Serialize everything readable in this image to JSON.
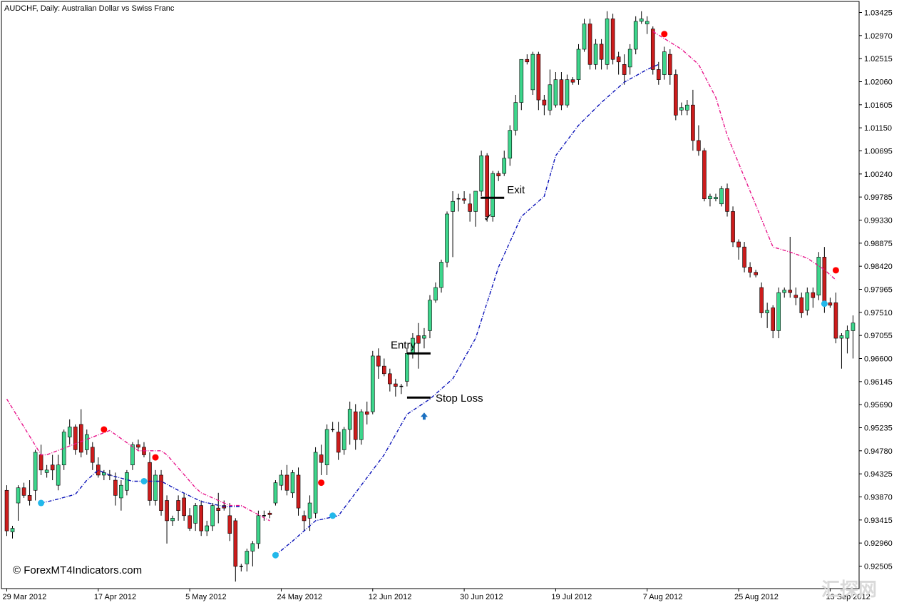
{
  "window": {
    "title": "AUDCHF, Daily:  Australian Dollar vs Swiss Franc",
    "copyright": "© ForexMT4Indicators.com",
    "watermark": "汇探网"
  },
  "chart_data": {
    "type": "candlestick",
    "symbol": "AUDCHF",
    "timeframe": "Daily",
    "y_axis": {
      "ticks": [
        "1.03425",
        "1.02970",
        "1.02515",
        "1.02060",
        "1.01605",
        "1.01150",
        "1.00695",
        "1.00240",
        "0.99785",
        "0.99330",
        "0.98875",
        "0.98420",
        "0.97965",
        "0.97510",
        "0.97055",
        "0.96600",
        "0.96145",
        "0.95690",
        "0.95235",
        "0.94780",
        "0.94325",
        "0.93870",
        "0.93415",
        "0.92960",
        "0.92505"
      ],
      "range": [
        0.923,
        1.0355
      ]
    },
    "x_axis": {
      "ticks": [
        {
          "label": "29 Mar 2012",
          "bar": 0
        },
        {
          "label": "17 Apr 2012",
          "bar": 16
        },
        {
          "label": "5 May 2012",
          "bar": 32
        },
        {
          "label": "24 May 2012",
          "bar": 48
        },
        {
          "label": "12 Jun 2012",
          "bar": 64
        },
        {
          "label": "30 Jun 2012",
          "bar": 80
        },
        {
          "label": "19 Jul 2012",
          "bar": 96
        },
        {
          "label": "7 Aug 2012",
          "bar": 112
        },
        {
          "label": "25 Aug 2012",
          "bar": 128
        },
        {
          "label": "13 Sep 2012",
          "bar": 144
        }
      ]
    },
    "candles": [
      [
        0.94,
        0.941,
        0.931,
        0.932
      ],
      [
        0.9318,
        0.933,
        0.9305,
        0.9325
      ],
      [
        0.9375,
        0.941,
        0.934,
        0.9405
      ],
      [
        0.9405,
        0.9415,
        0.9385,
        0.939
      ],
      [
        0.939,
        0.942,
        0.937,
        0.938
      ],
      [
        0.94,
        0.948,
        0.938,
        0.9475
      ],
      [
        0.947,
        0.949,
        0.943,
        0.944
      ],
      [
        0.9435,
        0.945,
        0.9425,
        0.944
      ],
      [
        0.945,
        0.947,
        0.942,
        0.944
      ],
      [
        0.941,
        0.947,
        0.94,
        0.945
      ],
      [
        0.945,
        0.952,
        0.944,
        0.9515
      ],
      [
        0.9505,
        0.954,
        0.949,
        0.9525
      ],
      [
        0.9525,
        0.953,
        0.947,
        0.948
      ],
      [
        0.953,
        0.956,
        0.9465,
        0.9475
      ],
      [
        0.948,
        0.952,
        0.947,
        0.951
      ],
      [
        0.9485,
        0.9495,
        0.944,
        0.9455
      ],
      [
        0.945,
        0.9465,
        0.9425,
        0.943
      ],
      [
        0.943,
        0.944,
        0.942,
        0.9435
      ],
      [
        0.943,
        0.944,
        0.942,
        0.9428
      ],
      [
        0.942,
        0.9435,
        0.937,
        0.939
      ],
      [
        0.9385,
        0.942,
        0.936,
        0.941
      ],
      [
        0.94,
        0.944,
        0.939,
        0.9435
      ],
      [
        0.945,
        0.9495,
        0.944,
        0.949
      ],
      [
        0.949,
        0.95,
        0.948,
        0.9485
      ],
      [
        0.9485,
        0.9495,
        0.9465,
        0.947
      ],
      [
        0.9455,
        0.9475,
        0.937,
        0.938
      ],
      [
        0.938,
        0.944,
        0.937,
        0.943
      ],
      [
        0.943,
        0.944,
        0.935,
        0.936
      ],
      [
        0.938,
        0.939,
        0.9295,
        0.934
      ],
      [
        0.934,
        0.935,
        0.933,
        0.9345
      ],
      [
        0.938,
        0.939,
        0.934,
        0.936
      ],
      [
        0.9385,
        0.9395,
        0.934,
        0.935
      ],
      [
        0.935,
        0.9365,
        0.932,
        0.9325
      ],
      [
        0.9335,
        0.9375,
        0.932,
        0.937
      ],
      [
        0.937,
        0.938,
        0.931,
        0.932
      ],
      [
        0.932,
        0.934,
        0.931,
        0.933
      ],
      [
        0.933,
        0.9375,
        0.932,
        0.937
      ],
      [
        0.9365,
        0.9395,
        0.9335,
        0.936
      ],
      [
        0.937,
        0.938,
        0.936,
        0.9365
      ],
      [
        0.935,
        0.9375,
        0.93,
        0.9315
      ],
      [
        0.934,
        0.9345,
        0.922,
        0.925
      ],
      [
        0.9248,
        0.9255,
        0.924,
        0.925
      ],
      [
        0.9255,
        0.9285,
        0.924,
        0.928
      ],
      [
        0.928,
        0.93,
        0.925,
        0.9295
      ],
      [
        0.9295,
        0.936,
        0.9285,
        0.935
      ],
      [
        0.935,
        0.936,
        0.934,
        0.9348
      ],
      [
        0.9355,
        0.936,
        0.9345,
        0.9352
      ],
      [
        0.9375,
        0.942,
        0.937,
        0.9415
      ],
      [
        0.941,
        0.944,
        0.94,
        0.943
      ],
      [
        0.943,
        0.945,
        0.939,
        0.94
      ],
      [
        0.9395,
        0.944,
        0.9385,
        0.9435
      ],
      [
        0.943,
        0.9445,
        0.935,
        0.9365
      ],
      [
        0.935,
        0.936,
        0.932,
        0.934
      ],
      [
        0.9345,
        0.939,
        0.932,
        0.9375
      ],
      [
        0.9355,
        0.9485,
        0.9345,
        0.9475
      ],
      [
        0.947,
        0.949,
        0.943,
        0.9455
      ],
      [
        0.945,
        0.953,
        0.943,
        0.952
      ],
      [
        0.952,
        0.9535,
        0.9515,
        0.952
      ],
      [
        0.9515,
        0.9535,
        0.946,
        0.9475
      ],
      [
        0.948,
        0.9525,
        0.947,
        0.952
      ],
      [
        0.952,
        0.9575,
        0.949,
        0.956
      ],
      [
        0.9555,
        0.957,
        0.948,
        0.95
      ],
      [
        0.95,
        0.956,
        0.949,
        0.9555
      ],
      [
        0.9555,
        0.9575,
        0.953,
        0.955
      ],
      [
        0.9555,
        0.9675,
        0.955,
        0.9665
      ],
      [
        0.9665,
        0.968,
        0.962,
        0.9645
      ],
      [
        0.9645,
        0.966,
        0.9625,
        0.963
      ],
      [
        0.963,
        0.964,
        0.9595,
        0.961
      ],
      [
        0.961,
        0.962,
        0.9585,
        0.9605
      ],
      [
        0.9603,
        0.961,
        0.959,
        0.9605
      ],
      [
        0.9615,
        0.968,
        0.9605,
        0.967
      ],
      [
        0.967,
        0.971,
        0.966,
        0.97
      ],
      [
        0.9705,
        0.973,
        0.964,
        0.969
      ],
      [
        0.97,
        0.972,
        0.968,
        0.9705
      ],
      [
        0.9715,
        0.9785,
        0.97,
        0.9775
      ],
      [
        0.9775,
        0.981,
        0.977,
        0.98
      ],
      [
        0.98,
        0.9855,
        0.979,
        0.985
      ],
      [
        0.985,
        0.995,
        0.984,
        0.9945
      ],
      [
        0.995,
        0.999,
        0.986,
        0.997
      ],
      [
        0.9975,
        0.9985,
        0.995,
        0.9975
      ],
      [
        0.9975,
        0.999,
        0.9965,
        0.9972
      ],
      [
        0.9965,
        0.9985,
        0.993,
        0.995
      ],
      [
        0.995,
        0.999,
        0.992,
        0.999
      ],
      [
        0.999,
        1.007,
        0.998,
        1.006
      ],
      [
        1.006,
        1.0065,
        0.993,
        0.994
      ],
      [
        0.994,
        1.003,
        0.993,
        1.0025
      ],
      [
        1.0025,
        1.003,
        1.001,
        1.002
      ],
      [
        1.0025,
        1.007,
        1.002,
        1.0055
      ],
      [
        1.0055,
        1.012,
        1.004,
        1.011
      ],
      [
        1.011,
        1.018,
        1.01,
        1.0165
      ],
      [
        1.0165,
        1.025,
        1.015,
        1.025
      ],
      [
        1.025,
        1.026,
        1.024,
        1.0245
      ],
      [
        1.019,
        1.0265,
        1.018,
        1.026
      ],
      [
        1.026,
        1.0265,
        1.015,
        1.017
      ],
      [
        1.017,
        1.018,
        1.014,
        1.016
      ],
      [
        1.015,
        1.023,
        1.014,
        1.02
      ],
      [
        1.016,
        1.0225,
        1.0155,
        1.021
      ],
      [
        1.021,
        1.0225,
        1.015,
        1.016
      ],
      [
        1.016,
        1.022,
        1.0155,
        1.021
      ],
      [
        1.021,
        1.0215,
        1.02,
        1.0205
      ],
      [
        1.021,
        1.028,
        1.02,
        1.027
      ],
      [
        1.027,
        1.033,
        1.0265,
        1.032
      ],
      [
        1.032,
        1.033,
        1.023,
        1.024
      ],
      [
        1.024,
        1.029,
        1.023,
        1.028
      ],
      [
        1.028,
        1.029,
        1.023,
        1.025
      ],
      [
        1.024,
        1.0345,
        1.023,
        1.033
      ],
      [
        1.033,
        1.034,
        1.024,
        1.025
      ],
      [
        1.0255,
        1.0265,
        1.022,
        1.0245
      ],
      [
        1.024,
        1.026,
        1.02,
        1.022
      ],
      [
        1.0235,
        1.028,
        1.022,
        1.027
      ],
      [
        1.027,
        1.0335,
        1.026,
        1.0325
      ],
      [
        1.0325,
        1.0345,
        1.032,
        1.033
      ],
      [
        1.032,
        1.0335,
        1.03,
        1.0325
      ],
      [
        1.031,
        1.0315,
        1.022,
        1.023
      ],
      [
        1.023,
        1.0245,
        1.02,
        1.021
      ],
      [
        1.022,
        1.0275,
        1.021,
        1.0265
      ],
      [
        1.026,
        1.027,
        1.02,
        1.022
      ],
      [
        1.022,
        1.023,
        1.013,
        1.014
      ],
      [
        1.015,
        1.0165,
        1.014,
        1.0155
      ],
      [
        1.015,
        1.017,
        1.014,
        1.016
      ],
      [
        1.016,
        1.019,
        1.007,
        1.009
      ],
      [
        1.009,
        1.012,
        1.006,
        1.007
      ],
      [
        1.007,
        1.0075,
        0.997,
        0.9975
      ],
      [
        0.9975,
        0.9985,
        0.996,
        0.998
      ],
      [
        0.9975,
        0.9985,
        0.997,
        0.9978
      ],
      [
        0.9965,
        1.0,
        0.996,
        0.9995
      ],
      [
        0.9995,
        1.0005,
        0.994,
        0.995
      ],
      [
        0.995,
        0.996,
        0.988,
        0.989
      ],
      [
        0.989,
        0.9895,
        0.9855,
        0.988
      ],
      [
        0.988,
        0.989,
        0.983,
        0.984
      ],
      [
        0.984,
        0.985,
        0.982,
        0.983
      ],
      [
        0.983,
        0.9835,
        0.982,
        0.9825
      ],
      [
        0.98,
        0.981,
        0.974,
        0.975
      ],
      [
        0.975,
        0.977,
        0.972,
        0.9755
      ],
      [
        0.976,
        0.9765,
        0.97,
        0.9715
      ],
      [
        0.9715,
        0.98,
        0.97,
        0.979
      ],
      [
        0.979,
        0.98,
        0.978,
        0.9795
      ],
      [
        0.9795,
        0.99,
        0.978,
        0.979
      ],
      [
        0.9785,
        0.98,
        0.9765,
        0.978
      ],
      [
        0.978,
        0.979,
        0.974,
        0.975
      ],
      [
        0.9755,
        0.98,
        0.9745,
        0.979
      ],
      [
        0.979,
        0.98,
        0.976,
        0.978
      ],
      [
        0.9785,
        0.987,
        0.9775,
        0.986
      ],
      [
        0.986,
        0.988,
        0.975,
        0.977
      ],
      [
        0.977,
        0.978,
        0.976,
        0.9765
      ],
      [
        0.977,
        0.979,
        0.969,
        0.97
      ],
      [
        0.97,
        0.971,
        0.964,
        0.9705
      ],
      [
        0.97,
        0.9725,
        0.967,
        0.9715
      ],
      [
        0.9715,
        0.9745,
        0.966,
        0.973
      ]
    ],
    "indicator_upper": [
      [
        0,
        0.958
      ],
      [
        6,
        0.947
      ],
      [
        7,
        0.947
      ],
      [
        18,
        0.9518
      ],
      [
        23,
        0.9478
      ],
      [
        27,
        0.9478
      ],
      [
        28,
        0.947
      ],
      [
        33,
        0.9405
      ],
      [
        34,
        0.9395
      ],
      [
        39,
        0.937
      ],
      [
        41,
        0.937
      ],
      [
        46,
        0.934
      ],
      [
        113,
        1.0305
      ],
      [
        118,
        1.027
      ],
      [
        121,
        1.024
      ],
      [
        124,
        1.0175
      ],
      [
        126,
        1.01
      ],
      [
        130,
        0.999
      ],
      [
        134,
        0.988
      ],
      [
        137,
        0.987
      ],
      [
        140,
        0.9858
      ],
      [
        143,
        0.9835
      ],
      [
        145,
        0.9815
      ]
    ],
    "indicator_lower": [
      [
        6,
        0.9375
      ],
      [
        8,
        0.938
      ],
      [
        12,
        0.9392
      ],
      [
        14,
        0.942
      ],
      [
        16,
        0.944
      ],
      [
        18,
        0.943
      ],
      [
        22,
        0.9418
      ],
      [
        27,
        0.9418
      ],
      [
        30,
        0.94
      ],
      [
        34,
        0.9378
      ],
      [
        38,
        0.9368
      ],
      [
        41,
        0.9368
      ],
      [
        47,
        0.9272
      ],
      [
        50,
        0.93
      ],
      [
        54,
        0.934
      ],
      [
        58,
        0.935
      ],
      [
        62,
        0.941
      ],
      [
        66,
        0.947
      ],
      [
        70,
        0.955
      ],
      [
        74,
        0.958
      ],
      [
        78,
        0.962
      ],
      [
        82,
        0.97
      ],
      [
        86,
        0.984
      ],
      [
        90,
        0.994
      ],
      [
        94,
        0.998
      ],
      [
        96,
        1.006
      ],
      [
        100,
        1.012
      ],
      [
        104,
        1.0165
      ],
      [
        108,
        1.0205
      ],
      [
        112,
        1.023
      ],
      [
        114,
        1.024
      ]
    ],
    "dots_red": [
      [
        17,
        0.952
      ],
      [
        26,
        0.9465
      ],
      [
        55,
        0.9415
      ],
      [
        115,
        1.03
      ],
      [
        145,
        0.9834
      ]
    ],
    "dots_blue": [
      [
        6,
        0.9375
      ],
      [
        24,
        0.9418
      ],
      [
        47,
        0.9272
      ],
      [
        57,
        0.935
      ],
      [
        143,
        0.9768
      ]
    ],
    "annotations": [
      {
        "text": "Entry",
        "bar": 72,
        "price": 0.967
      },
      {
        "text": "Stop Loss",
        "bar": 72,
        "price": 0.9583
      },
      {
        "text": "Exit",
        "bar": 85,
        "price": 0.9977
      },
      {
        "text": "✓",
        "bar": 84,
        "price": 0.9945
      },
      {
        "text": "arrow-up",
        "bar": 73,
        "price": 0.9545
      }
    ],
    "colors": {
      "bull_body": "#3dd68c",
      "bear_body": "#cc1c1c",
      "wick": "#000000",
      "indicator_upper": "#e8138a",
      "indicator_lower": "#0a12b8",
      "dot_red": "#ff0000",
      "dot_blue": "#22b8ea",
      "arrow": "#1a6fc0"
    }
  }
}
